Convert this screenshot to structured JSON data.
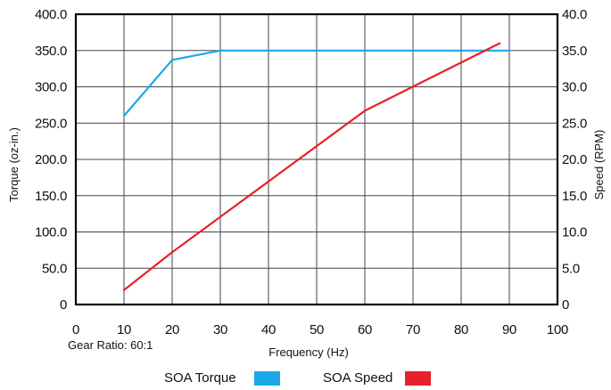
{
  "chart_data": {
    "type": "line",
    "xlabel": "Frequency (Hz)",
    "ylabel": "Torque (oz-in.)",
    "y2label": "Speed (RPM)",
    "note": "Gear Ratio: 60:1",
    "xlim": [
      0,
      100
    ],
    "ylim": [
      0,
      400
    ],
    "y2lim": [
      0,
      40
    ],
    "grid": true,
    "legend_position": "bottom",
    "x_ticks": [
      "0",
      "10",
      "20",
      "30",
      "40",
      "50",
      "60",
      "70",
      "80",
      "90",
      "100"
    ],
    "y_ticks": [
      "0",
      "50.0",
      "100.0",
      "150.0",
      "200.0",
      "250.0",
      "300.0",
      "350.0",
      "400.0"
    ],
    "y2_ticks": [
      "0",
      "5.0",
      "10.0",
      "15.0",
      "20.0",
      "25.0",
      "30.0",
      "35.0",
      "40.0"
    ],
    "series": [
      {
        "name": "SOA Torque",
        "axis": "left",
        "color": "#1aa7e6",
        "x": [
          10,
          20,
          30,
          40,
          50,
          60,
          70,
          80,
          90
        ],
        "y": [
          260,
          337,
          350,
          350,
          350,
          350,
          350,
          350,
          350
        ]
      },
      {
        "name": "SOA Speed",
        "axis": "right",
        "color": "#e8202a",
        "x": [
          10,
          20,
          60,
          88
        ],
        "y": [
          2,
          7.2,
          26.7,
          36
        ]
      }
    ]
  }
}
